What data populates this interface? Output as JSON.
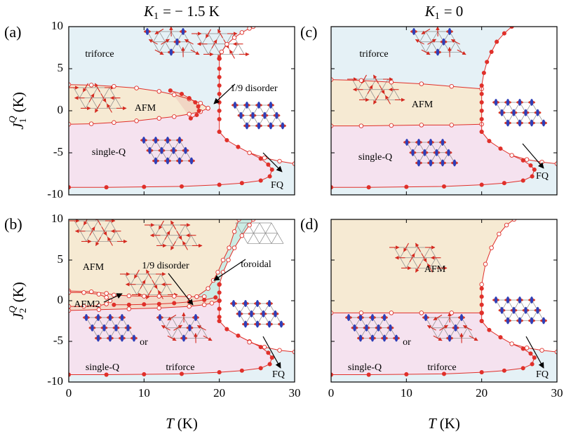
{
  "chart_data": [
    {
      "type": "line",
      "panel": "(a)",
      "line_color": "#e0302a",
      "title": {
        "main": "K",
        "sub": "1",
        "rest": "= − 1.5 K"
      },
      "ylabel": {
        "main": "J",
        "sub": "1",
        "sup": "Q",
        "unit": "(K)"
      },
      "xlim": [
        0,
        30
      ],
      "ylim": [
        -10,
        10
      ],
      "xticks": [
        0,
        10,
        20,
        30
      ],
      "yticks": [
        -10,
        -5,
        0,
        5,
        10
      ],
      "xtick_labels": false,
      "ytick_labels": true,
      "labels": [
        "triforce",
        "AFM",
        "1/9 disorder",
        "single-Q",
        "FQ"
      ],
      "curves": [
        {
          "marker": "open",
          "x": [
            0,
            3,
            6,
            9,
            12,
            14,
            16,
            17.5,
            18.5
          ],
          "y": [
            3.1,
            3.05,
            2.9,
            2.7,
            2.3,
            1.9,
            1.4,
            0.9,
            0.3
          ]
        },
        {
          "marker": "open",
          "x": [
            0,
            3,
            6,
            9,
            12,
            14,
            16,
            17.5,
            18.5
          ],
          "y": [
            -1.6,
            -1.55,
            -1.4,
            -1.2,
            -0.9,
            -0.7,
            -0.4,
            -0.1,
            0.3
          ]
        },
        {
          "marker": "filled",
          "x": [
            13.5,
            15,
            16,
            16.8,
            17.2,
            17.3,
            17,
            16.2
          ],
          "y": [
            2.4,
            2,
            1.5,
            1,
            0.5,
            0,
            -0.5,
            -0.9
          ]
        },
        {
          "marker": "open",
          "x": [
            20,
            20.3,
            21,
            22,
            23,
            24,
            24.5
          ],
          "y": [
            6.2,
            7,
            7.9,
            8.7,
            9.3,
            9.8,
            10
          ]
        },
        {
          "marker": "filled",
          "x": [
            20,
            20,
            20,
            20,
            20,
            20,
            20,
            20,
            20
          ],
          "y": [
            6.2,
            5,
            4,
            3,
            2,
            1,
            0,
            -1,
            -2.5
          ]
        },
        {
          "marker": "filled",
          "x": [
            20,
            21,
            22.5,
            24,
            25.5,
            26.5,
            27,
            26.7,
            25.5,
            23,
            20,
            15,
            10,
            5,
            0
          ],
          "y": [
            -2.5,
            -3.5,
            -4.3,
            -5,
            -5.7,
            -6.4,
            -7,
            -7.8,
            -8.3,
            -8.6,
            -8.8,
            -9,
            -9.05,
            -9.1,
            -9.1
          ]
        },
        {
          "marker": "open",
          "x": [
            24,
            26,
            28,
            30
          ],
          "y": [
            -5,
            -5.6,
            -6,
            -6.3
          ]
        }
      ]
    },
    {
      "type": "line",
      "panel": "(b)",
      "line_color": "#e0302a",
      "xlabel": {
        "main": "T",
        "unit": "(K)"
      },
      "ylabel": {
        "main": "J",
        "sub": "2",
        "sup": "Q",
        "unit": "(K)"
      },
      "xlim": [
        0,
        30
      ],
      "ylim": [
        -10,
        10
      ],
      "xticks": [
        0,
        10,
        20,
        30
      ],
      "yticks": [
        -10,
        -5,
        0,
        5,
        10
      ],
      "xtick_labels": true,
      "ytick_labels": true,
      "labels": [
        "AFM",
        "1/9 disorder",
        "toroidal",
        "AFM2",
        "single-Q",
        "or",
        "triforce",
        "FQ"
      ],
      "curves": [
        {
          "marker": "open",
          "x": [
            17,
            18.5,
            19.2,
            19.8,
            20.5,
            21.3,
            22,
            22.6
          ],
          "y": [
            0.5,
            1.5,
            2.5,
            3.5,
            5,
            6.5,
            8.5,
            10
          ]
        },
        {
          "marker": "open",
          "x": [
            20,
            20.5,
            21.2,
            22,
            23,
            24,
            24.5
          ],
          "y": [
            2,
            3.5,
            5,
            6.5,
            8,
            9.3,
            10
          ]
        },
        {
          "marker": "open",
          "x": [
            0,
            3,
            5,
            6,
            8,
            10,
            12,
            14,
            16,
            17,
            18
          ],
          "y": [
            1.2,
            1.1,
            0.9,
            0.7,
            0.6,
            0.55,
            0.55,
            0.55,
            0.5,
            0.5,
            0.5
          ]
        },
        {
          "marker": "open",
          "x": [
            0,
            2,
            4,
            5,
            5.5,
            5,
            4,
            2,
            0
          ],
          "y": [
            1,
            1,
            0.8,
            0.4,
            0,
            -0.4,
            -0.6,
            -0.7,
            -0.7
          ]
        },
        {
          "marker": "open",
          "x": [
            0,
            4,
            8,
            12,
            16,
            18,
            19,
            20
          ],
          "y": [
            -1.2,
            -1.1,
            -1,
            -0.9,
            -0.7,
            -0.5,
            -0.3,
            0
          ]
        },
        {
          "marker": "filled",
          "x": [
            6,
            8,
            10,
            12,
            14,
            16,
            18,
            19.5
          ],
          "y": [
            -0.5,
            -0.5,
            -0.45,
            -0.4,
            -0.3,
            -0.15,
            0.1,
            0.4
          ]
        },
        {
          "marker": "filled",
          "x": [
            20,
            20,
            20,
            20,
            20,
            20
          ],
          "y": [
            2,
            1,
            0,
            -1,
            -2,
            -2.5
          ]
        },
        {
          "marker": "filled",
          "x": [
            20,
            21,
            22.5,
            24,
            25.5,
            26.5,
            27,
            26.7,
            25.5,
            23,
            20,
            15,
            10,
            5,
            0
          ],
          "y": [
            -2.5,
            -3.5,
            -4.3,
            -5,
            -5.7,
            -6.4,
            -7,
            -7.8,
            -8.3,
            -8.6,
            -8.8,
            -9,
            -9.05,
            -9.1,
            -9.1
          ]
        },
        {
          "marker": "open",
          "x": [
            24,
            26,
            28,
            30
          ],
          "y": [
            -5.1,
            -5.7,
            -6.1,
            -6.3
          ]
        }
      ]
    },
    {
      "type": "line",
      "panel": "(c)",
      "line_color": "#e0302a",
      "title": {
        "main": "K",
        "sub": "1",
        "rest": "= 0"
      },
      "xlim": [
        0,
        30
      ],
      "ylim": [
        -10,
        10
      ],
      "xticks": [
        0,
        10,
        20,
        30
      ],
      "yticks": [
        -10,
        -5,
        0,
        5,
        10
      ],
      "xtick_labels": false,
      "ytick_labels": false,
      "labels": [
        "triforce",
        "AFM",
        "single-Q",
        "FQ"
      ],
      "curves": [
        {
          "marker": "open",
          "x": [
            0,
            4,
            8,
            12,
            16,
            20
          ],
          "y": [
            3.7,
            3.6,
            3.4,
            3.2,
            2.9,
            2.6
          ]
        },
        {
          "marker": "open",
          "x": [
            0,
            4,
            8,
            12,
            16,
            20
          ],
          "y": [
            -1.8,
            -1.8,
            -1.75,
            -1.7,
            -1.7,
            -1.6
          ]
        },
        {
          "marker": "filled",
          "x": [
            24,
            23,
            22,
            21.3,
            20.7,
            20.3,
            20,
            20,
            20,
            20,
            20,
            20
          ],
          "y": [
            10,
            9.2,
            8.2,
            7,
            5.8,
            4.5,
            3,
            2,
            1,
            0,
            -1,
            -2.5
          ]
        },
        {
          "marker": "filled",
          "x": [
            20,
            21,
            22.5,
            24,
            25.5,
            26.5,
            27,
            26.7,
            25.5,
            23,
            20,
            15,
            10,
            5,
            0
          ],
          "y": [
            -2.5,
            -3.6,
            -4.5,
            -5.3,
            -5.9,
            -6.5,
            -7,
            -7.8,
            -8.3,
            -8.6,
            -8.8,
            -9,
            -9.05,
            -9.1,
            -9.1
          ]
        },
        {
          "marker": "open",
          "x": [
            24,
            26,
            28,
            30
          ],
          "y": [
            -5.3,
            -5.8,
            -6.1,
            -6.3
          ]
        }
      ]
    },
    {
      "type": "line",
      "panel": "(d)",
      "line_color": "#e0302a",
      "xlabel": {
        "main": "T",
        "unit": "(K)"
      },
      "xlim": [
        0,
        30
      ],
      "ylim": [
        -10,
        10
      ],
      "xticks": [
        0,
        10,
        20,
        30
      ],
      "yticks": [
        -10,
        -5,
        0,
        5,
        10
      ],
      "xtick_labels": true,
      "ytick_labels": false,
      "labels": [
        "AFM",
        "single-Q",
        "or",
        "triforce",
        "FQ"
      ],
      "curves": [
        {
          "marker": "open",
          "x": [
            0,
            4,
            8,
            12,
            16,
            20
          ],
          "y": [
            -1.5,
            -1.5,
            -1.5,
            -1.5,
            -1.5,
            -1.5
          ]
        },
        {
          "marker": "open",
          "x": [
            20,
            20.5,
            21.3,
            22.3,
            23.3,
            24.3
          ],
          "y": [
            2,
            4.5,
            6.5,
            8.2,
            9.3,
            10
          ]
        },
        {
          "marker": "filled",
          "x": [
            20,
            20,
            20,
            20,
            20
          ],
          "y": [
            1.5,
            0.5,
            -0.5,
            -1.5,
            -2.5
          ]
        },
        {
          "marker": "filled",
          "x": [
            20,
            21,
            22.5,
            24,
            25.5,
            26.5,
            27,
            26.7,
            25.5,
            23,
            20,
            15,
            10,
            5,
            0
          ],
          "y": [
            -2.5,
            -3.6,
            -4.5,
            -5.3,
            -5.9,
            -6.5,
            -7,
            -7.8,
            -8.3,
            -8.6,
            -8.8,
            -9,
            -9.05,
            -9.1,
            -9.1
          ]
        },
        {
          "marker": "open",
          "x": [
            24,
            26,
            28,
            30
          ],
          "y": [
            -5.3,
            -5.8,
            -6.1,
            -6.3
          ]
        }
      ]
    }
  ]
}
